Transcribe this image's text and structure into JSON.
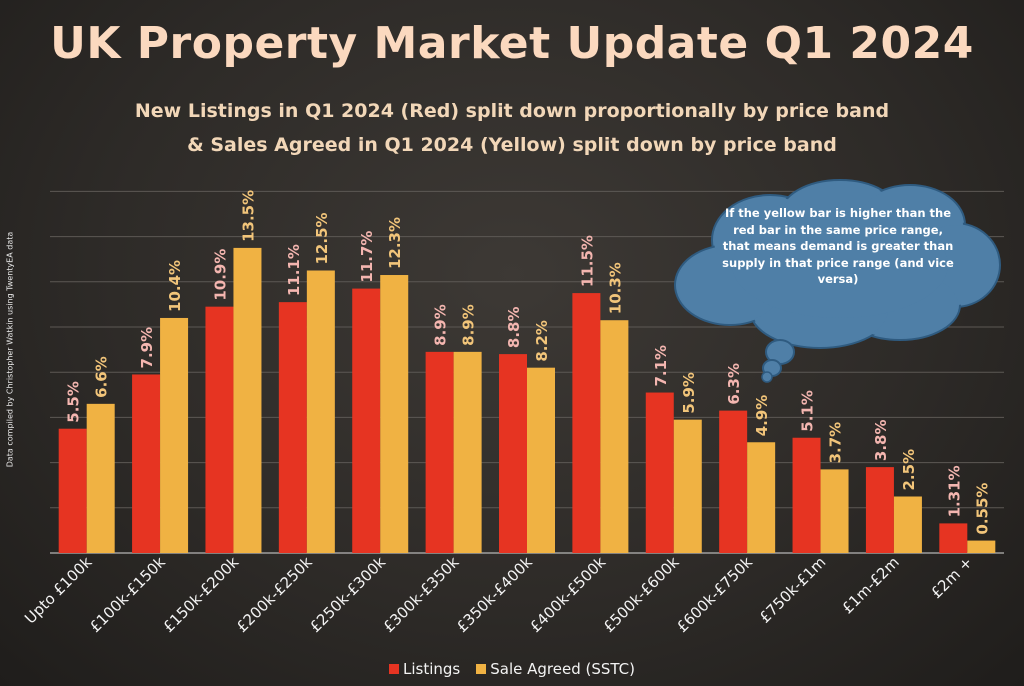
{
  "title": "UK Property Market Update Q1 2024",
  "subtitle_line1": "New Listings in Q1 2024 (Red) split down proportionally by price band",
  "subtitle_line2": "& Sales Agreed in Q1 2024 (Yellow) split down by price band",
  "side_credit": "Data compiled by Christopher Watkin using TwentyEA data",
  "callout": "If the yellow bar is higher than the red bar in the same price range, that means demand is greater than supply in that price range (and vice versa)",
  "colors": {
    "listings": "#e63422",
    "sstc": "#f0b243",
    "listings_label": "#f4b6b0",
    "sstc_label": "#f2c57a",
    "cloud_fill": "#4f7fa7",
    "cloud_stroke": "#2f5b80"
  },
  "chart_data": {
    "type": "bar",
    "categories": [
      "Upto £100k",
      "£100k-£150k",
      "£150k-£200k",
      "£200k-£250k",
      "£250k-£300k",
      "£300k-£350k",
      "£350k-£400k",
      "£400k-£500k",
      "£500k-£600k",
      "£600k-£750k",
      "£750k-£1m",
      "£1m-£2m",
      "£2m +"
    ],
    "series": [
      {
        "name": "Listings",
        "values": [
          5.5,
          7.9,
          10.9,
          11.1,
          11.7,
          8.9,
          8.8,
          11.5,
          7.1,
          6.3,
          5.1,
          3.8,
          1.31
        ],
        "labels": [
          "5.5%",
          "7.9%",
          "10.9%",
          "11.1%",
          "11.7%",
          "8.9%",
          "8.8%",
          "11.5%",
          "7.1%",
          "6.3%",
          "5.1%",
          "3.8%",
          "1.31%"
        ]
      },
      {
        "name": "Sale Agreed (SSTC)",
        "values": [
          6.6,
          10.4,
          13.5,
          12.5,
          12.3,
          8.9,
          8.2,
          10.3,
          5.9,
          4.9,
          3.7,
          2.5,
          0.55
        ],
        "labels": [
          "6.6%",
          "10.4%",
          "13.5%",
          "12.5%",
          "12.3%",
          "8.9%",
          "8.2%",
          "10.3%",
          "5.9%",
          "4.9%",
          "3.7%",
          "2.5%",
          "0.55%"
        ]
      }
    ],
    "ylim": [
      0,
      16
    ],
    "grid": true,
    "legend_position": "bottom"
  }
}
